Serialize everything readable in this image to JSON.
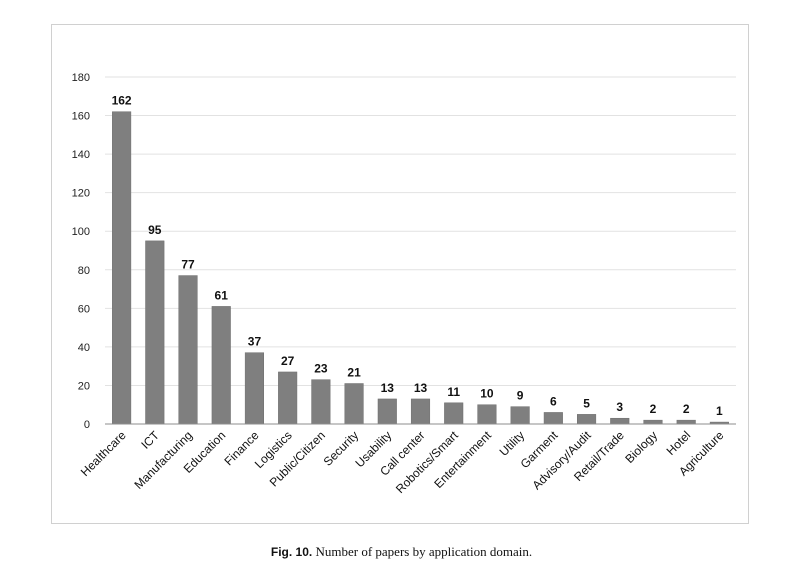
{
  "chart_data": {
    "type": "bar",
    "title": "",
    "xlabel": "",
    "ylabel": "",
    "ylim": [
      0,
      180
    ],
    "yticks": [
      0,
      20,
      40,
      60,
      80,
      100,
      120,
      140,
      160,
      180
    ],
    "grid": true,
    "bar_color": "#7f7f7f",
    "categories": [
      "Healthcare",
      "ICT",
      "Manufacturing",
      "Education",
      "Finance",
      "Logistics",
      "Public/Citizen",
      "Security",
      "Usability",
      "Call center",
      "Robotics/Smart",
      "Entertainment",
      "Utility",
      "Garment",
      "Advisory/Audit",
      "Retail/Trade",
      "Biology",
      "Hotel",
      "Agriculture"
    ],
    "values": [
      162,
      95,
      77,
      61,
      37,
      27,
      23,
      21,
      13,
      13,
      11,
      10,
      9,
      6,
      5,
      3,
      2,
      2,
      1
    ]
  },
  "caption": {
    "label": "Fig. 10.",
    "text": "Number of papers by application domain."
  }
}
